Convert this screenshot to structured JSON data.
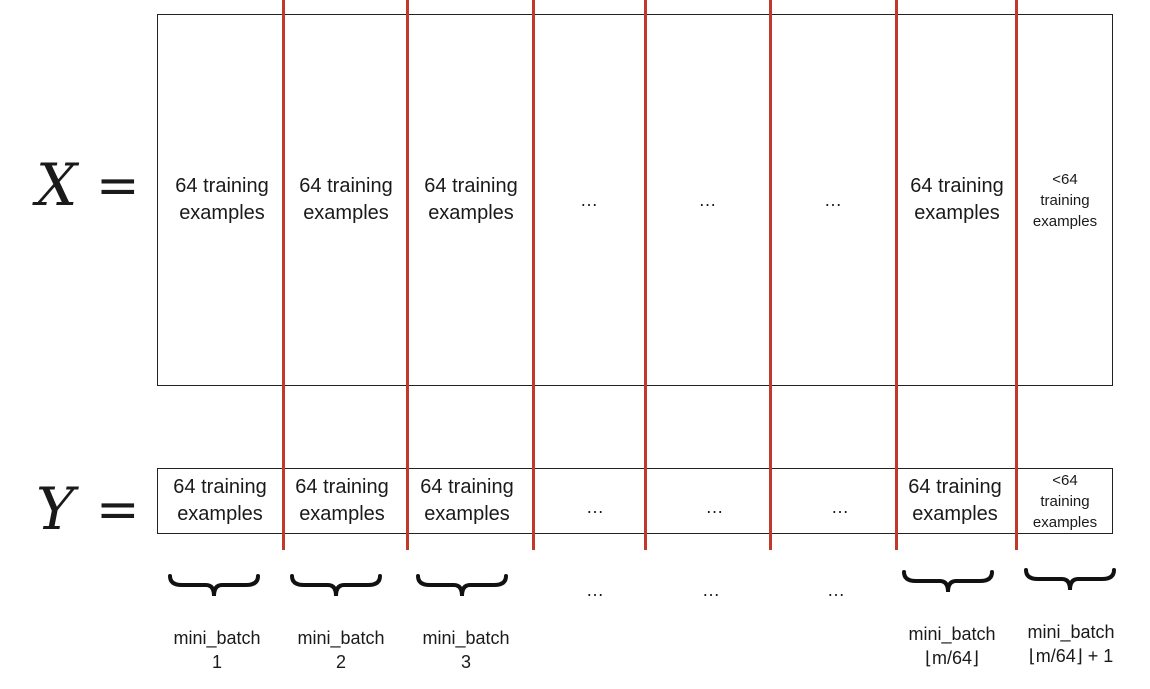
{
  "x_label": "X",
  "y_label": "Y",
  "equals": "=",
  "x_cells": [
    {
      "l1": "64 training",
      "l2": "examples",
      "l3": ""
    },
    {
      "l1": "64 training",
      "l2": "examples",
      "l3": ""
    },
    {
      "l1": "64 training",
      "l2": "examples",
      "l3": ""
    },
    {
      "l1": "…",
      "l2": "",
      "l3": ""
    },
    {
      "l1": "…",
      "l2": "",
      "l3": ""
    },
    {
      "l1": "…",
      "l2": "",
      "l3": ""
    },
    {
      "l1": "64 training",
      "l2": "examples",
      "l3": ""
    },
    {
      "l1": "<64",
      "l2": "training",
      "l3": "examples"
    }
  ],
  "y_cells": [
    {
      "l1": "64 training",
      "l2": "examples",
      "l3": ""
    },
    {
      "l1": "64 training",
      "l2": "examples",
      "l3": ""
    },
    {
      "l1": "64 training",
      "l2": "examples",
      "l3": ""
    },
    {
      "l1": "…",
      "l2": "",
      "l3": ""
    },
    {
      "l1": "…",
      "l2": "",
      "l3": ""
    },
    {
      "l1": "…",
      "l2": "",
      "l3": ""
    },
    {
      "l1": "64 training",
      "l2": "examples",
      "l3": ""
    },
    {
      "l1": "<64",
      "l2": "training",
      "l3": "examples"
    }
  ],
  "minibatches": [
    {
      "name": "mini_batch",
      "index": "1"
    },
    {
      "name": "mini_batch",
      "index": "2"
    },
    {
      "name": "mini_batch",
      "index": "3"
    },
    {
      "name": "mini_batch",
      "index": "⌊m/64⌋"
    },
    {
      "name": "mini_batch",
      "index": "⌊m/64⌋ + 1"
    }
  ],
  "bottom_dots": [
    "…",
    "…",
    "…"
  ],
  "colors": {
    "divider": "#c0392b",
    "border": "#222222"
  }
}
